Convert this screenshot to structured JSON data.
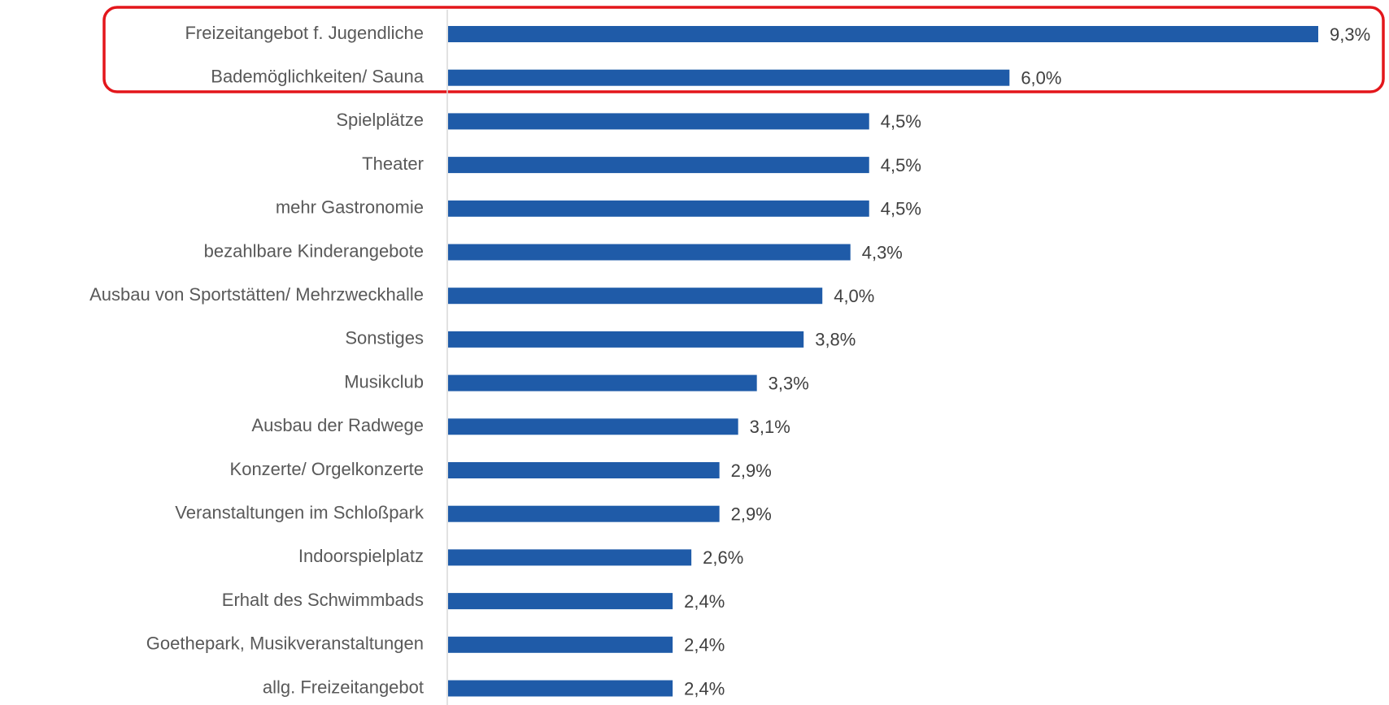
{
  "chart_data": {
    "type": "bar",
    "orientation": "horizontal",
    "color": "#1f5ba8",
    "categories": [
      "Freizeitangebot f. Jugendliche",
      "Bademöglichkeiten/ Sauna",
      "Spielplätze",
      "Theater",
      "mehr Gastronomie",
      "bezahlbare Kinderangebote",
      "Ausbau von Sportstätten/ Mehrzweckhalle",
      "Sonstiges",
      "Musikclub",
      "Ausbau der Radwege",
      "Konzerte/ Orgelkonzerte",
      "Veranstaltungen im Schloßpark",
      "Indoorspielplatz",
      "Erhalt des Schwimmbads",
      "Goethepark, Musikveranstaltungen",
      "allg. Freizeitangebot"
    ],
    "values": [
      9.3,
      6.0,
      4.5,
      4.5,
      4.5,
      4.3,
      4.0,
      3.8,
      3.3,
      3.1,
      2.9,
      2.9,
      2.6,
      2.4,
      2.4,
      2.4
    ],
    "value_labels": [
      "9,3%",
      "6,0%",
      "4,5%",
      "4,5%",
      "4,5%",
      "4,3%",
      "4,0%",
      "3,8%",
      "3,3%",
      "3,1%",
      "2,9%",
      "2,9%",
      "2,6%",
      "2,4%",
      "2,4%",
      "2,4%"
    ]
  }
}
